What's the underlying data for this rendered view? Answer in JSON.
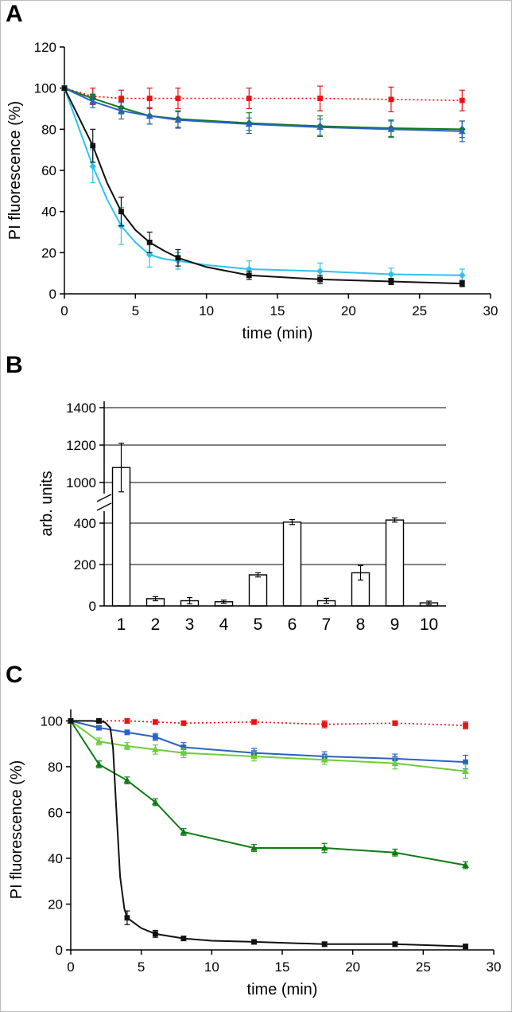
{
  "figure": {
    "background": "#ffffff",
    "panels": [
      {
        "label": "A"
      },
      {
        "label": "B"
      },
      {
        "label": "C"
      }
    ]
  },
  "chart_data": [
    {
      "id": "panel-A",
      "type": "line",
      "title": "",
      "xlabel": "time (min)",
      "ylabel": "PI fluorescence (%)",
      "xlim": [
        0,
        30
      ],
      "xticks": [
        0,
        5,
        10,
        15,
        20,
        25,
        30
      ],
      "ylim": [
        0,
        120
      ],
      "yticks": [
        0,
        20,
        40,
        60,
        80,
        100,
        120
      ],
      "grid": false,
      "legend": "none",
      "x": [
        0,
        2,
        4,
        6,
        8,
        13,
        18,
        23,
        28
      ],
      "series": [
        {
          "name": "red-dotted",
          "color": "#ee1111",
          "dash": "dotted",
          "marker": "square",
          "values": [
            100,
            96,
            95,
            95,
            95,
            95,
            95,
            94.5,
            94
          ],
          "err": [
            0,
            4,
            4,
            5,
            5,
            5,
            6,
            6,
            5
          ]
        },
        {
          "name": "dark-green",
          "color": "#0e7c12",
          "dash": "solid",
          "marker": "diamond",
          "values": [
            100,
            95,
            90.5,
            86.5,
            85,
            83,
            81.5,
            80.5,
            80
          ],
          "err": [
            0,
            2,
            3,
            4,
            4,
            5,
            5,
            4,
            4
          ]
        },
        {
          "name": "blue",
          "color": "#2b62c5",
          "dash": "solid",
          "marker": "triangle",
          "values": [
            100,
            93.5,
            89,
            86.5,
            84.5,
            82.5,
            81,
            80,
            79
          ],
          "err": [
            0,
            3,
            4,
            4,
            4,
            3,
            4,
            4,
            5
          ]
        },
        {
          "name": "cyan",
          "color": "#2cc4ef",
          "dash": "solid",
          "marker": "diamond",
          "values": [
            100,
            62,
            33,
            19,
            16,
            12,
            11,
            9.5,
            9
          ],
          "err": [
            0,
            8,
            9,
            6,
            4,
            4,
            4,
            3,
            3
          ],
          "line_points": [
            [
              0,
              100
            ],
            [
              1,
              81
            ],
            [
              2,
              62
            ],
            [
              3,
              46
            ],
            [
              4,
              33
            ],
            [
              5,
              25
            ],
            [
              6,
              19
            ],
            [
              7,
              17
            ],
            [
              8,
              16
            ],
            [
              10,
              14
            ],
            [
              13,
              12
            ],
            [
              18,
              11
            ],
            [
              23,
              9.5
            ],
            [
              28,
              9
            ]
          ]
        },
        {
          "name": "black",
          "color": "#111111",
          "dash": "solid",
          "marker": "square",
          "values": [
            100,
            72,
            40,
            25,
            17.5,
            9,
            7,
            6,
            5
          ],
          "err": [
            0,
            8,
            7,
            5,
            4,
            2,
            2,
            1.5,
            1.5
          ],
          "line_points": [
            [
              0,
              100
            ],
            [
              1,
              86
            ],
            [
              2,
              72
            ],
            [
              3,
              54
            ],
            [
              4,
              40
            ],
            [
              5,
              31
            ],
            [
              6,
              25
            ],
            [
              7,
              21
            ],
            [
              8,
              17.5
            ],
            [
              10,
              13
            ],
            [
              13,
              9
            ],
            [
              18,
              7
            ],
            [
              23,
              6
            ],
            [
              28,
              5
            ]
          ]
        }
      ]
    },
    {
      "id": "panel-B",
      "type": "bar",
      "title": "",
      "xlabel": "",
      "ylabel": "arb. units",
      "categories": [
        "1",
        "2",
        "3",
        "4",
        "5",
        "6",
        "7",
        "8",
        "9",
        "10"
      ],
      "values": [
        1080,
        35,
        25,
        20,
        150,
        405,
        25,
        160,
        415,
        15
      ],
      "errors": [
        130,
        10,
        15,
        8,
        10,
        12,
        12,
        35,
        10,
        8
      ],
      "bar_fill": "#ffffff",
      "bar_stroke": "#000000",
      "axis_break": [
        450,
        950
      ],
      "yticks_low": [
        0,
        200,
        400
      ],
      "yticks_high": [
        1000,
        1200,
        1400
      ],
      "grid_values": [
        200,
        400,
        1000,
        1200,
        1400
      ],
      "grid": true
    },
    {
      "id": "panel-C",
      "type": "line",
      "title": "",
      "xlabel": "time (min)",
      "ylabel": "PI fluorescence (%)",
      "xlim": [
        0,
        30
      ],
      "xticks": [
        0,
        5,
        10,
        15,
        20,
        25,
        30
      ],
      "ylim": [
        0,
        105
      ],
      "yticks": [
        0,
        20,
        40,
        60,
        80,
        100
      ],
      "grid": false,
      "legend": "none",
      "x": [
        0,
        2,
        4,
        6,
        8,
        13,
        18,
        23,
        28
      ],
      "series": [
        {
          "name": "red-dotted",
          "color": "#ee1111",
          "dash": "dotted",
          "marker": "square",
          "values": [
            100,
            100,
            100,
            99.5,
            99,
            99.5,
            98.5,
            99,
            98
          ],
          "err": [
            0,
            1,
            1,
            1,
            1,
            1,
            1.5,
            1,
            1.5
          ]
        },
        {
          "name": "blue",
          "color": "#2b62c5",
          "dash": "solid",
          "marker": "square",
          "values": [
            100,
            97,
            95,
            93,
            88.5,
            86,
            84.5,
            83.5,
            82
          ],
          "err": [
            0,
            1,
            1,
            1.5,
            2,
            2,
            2,
            2,
            3
          ]
        },
        {
          "name": "light-green",
          "color": "#6cce3a",
          "dash": "solid",
          "marker": "triangle",
          "values": [
            100,
            91,
            89,
            87.5,
            86,
            84.5,
            83,
            81.5,
            78
          ],
          "err": [
            0,
            1.5,
            1.5,
            2,
            2,
            2,
            2,
            2.5,
            3
          ]
        },
        {
          "name": "dark-green",
          "color": "#0e7c12",
          "dash": "solid",
          "marker": "triangle",
          "values": [
            100,
            81,
            74,
            64.5,
            51.5,
            44.5,
            44.5,
            42.5,
            37
          ],
          "err": [
            0,
            1.5,
            1.5,
            1.5,
            1.5,
            1.5,
            2,
            1.5,
            1.5
          ]
        },
        {
          "name": "black",
          "color": "#111111",
          "dash": "solid",
          "marker": "square",
          "values": [
            100,
            100,
            14,
            7,
            5,
            3.5,
            2.5,
            2.5,
            1.5
          ],
          "err": [
            0,
            0,
            3,
            1.5,
            1,
            1,
            1,
            1,
            1
          ],
          "line_points": [
            [
              0,
              100
            ],
            [
              1.5,
              100
            ],
            [
              2.4,
              99.5
            ],
            [
              2.8,
              97
            ],
            [
              3,
              88
            ],
            [
              3.2,
              65
            ],
            [
              3.5,
              32
            ],
            [
              3.8,
              18
            ],
            [
              4,
              14
            ],
            [
              5,
              9.5
            ],
            [
              6,
              7
            ],
            [
              8,
              5
            ],
            [
              10,
              4
            ],
            [
              13,
              3.5
            ],
            [
              18,
              2.5
            ],
            [
              23,
              2.5
            ],
            [
              28,
              1.5
            ]
          ]
        }
      ]
    }
  ]
}
